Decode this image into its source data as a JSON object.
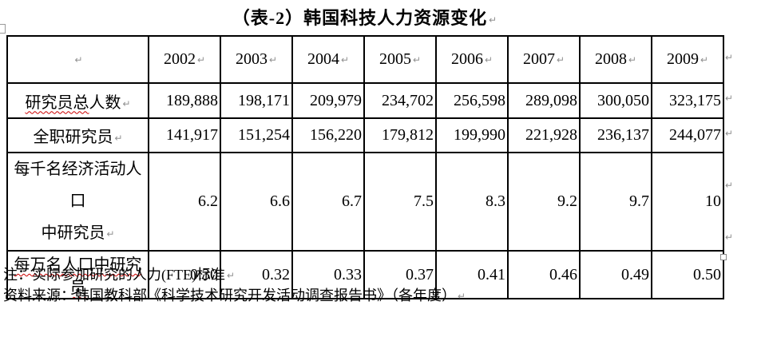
{
  "title": {
    "text": "（表-2）韩国科技人力资源变化"
  },
  "formatting_marks": {
    "paragraph": "↵",
    "end_of_cell": "↵",
    "end_of_row": "↵",
    "color": "#909090"
  },
  "colors": {
    "background": "#ffffff",
    "text": "#000000",
    "table_border": "#000000",
    "spellcheck_underline": "#cc0000"
  },
  "table": {
    "header": {
      "corner": "",
      "years": [
        "2002",
        "2003",
        "2004",
        "2005",
        "2006",
        "2007",
        "2008",
        "2009"
      ]
    },
    "rows": [
      {
        "label_text": "研究员总人数",
        "label_lines": [
          [
            {
              "text": "研究员总",
              "wavy": true
            },
            {
              "text": "人数",
              "wavy": false
            }
          ]
        ],
        "show_cell_mark": true,
        "values": [
          "189,888",
          "198,171",
          "209,979",
          "234,702",
          "256,598",
          "289,098",
          "300,050",
          "323,175"
        ]
      },
      {
        "label_text": "全职研究员",
        "label_lines": [
          [
            {
              "text": "全职研究员",
              "wavy": false
            }
          ]
        ],
        "show_cell_mark": true,
        "values": [
          "141,917",
          "151,254",
          "156,220",
          "179,812",
          "199,990",
          "221,928",
          "236,137",
          "244,077"
        ]
      },
      {
        "label_text": "每千名经济活动人口中研究员",
        "label_lines": [
          [
            {
              "text": "每千名经济活动人口",
              "wavy": false
            }
          ],
          [
            {
              "text": "中研究员",
              "wavy": false
            }
          ]
        ],
        "show_cell_mark": true,
        "values": [
          "6.2",
          "6.6",
          "6.7",
          "7.5",
          "8.3",
          "9.2",
          "9.7",
          "10"
        ]
      },
      {
        "label_text": "每万名人口中研究员",
        "label_lines": [
          [
            {
              "text": "每万名人口中研究员",
              "wavy": true
            }
          ]
        ],
        "show_cell_mark": false,
        "values": [
          "0.30",
          "0.32",
          "0.33",
          "0.37",
          "0.41",
          "0.46",
          "0.49",
          "0.50"
        ]
      }
    ]
  },
  "notes": {
    "note": "注：实际参加研究的人力(FTE)标准",
    "source": "资料来源：韩国教科部《科学技术研究开发活动调查报告书》（各年度）"
  }
}
